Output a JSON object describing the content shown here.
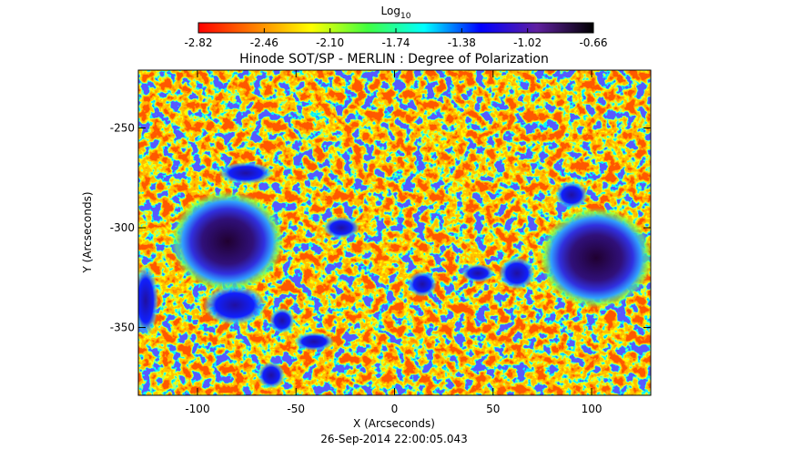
{
  "chart_data": {
    "type": "image",
    "title": "Hinode SOT/SP - MERLIN : Degree of Polarization",
    "colorbar": {
      "label": "Log",
      "label_sub": "10",
      "lim": [
        -2.82,
        -0.66
      ],
      "ticks": [
        -2.82,
        -2.46,
        {
          "value": -2.1,
          "label": "-2.10"
        },
        -1.74,
        -1.38,
        -1.02,
        -0.66
      ],
      "colormap": [
        "#ff0000",
        "#ff8000",
        "#ffff00",
        "#40ff40",
        "#00ffff",
        "#0000ff",
        "#6020a0",
        "#000000"
      ]
    },
    "xlabel": "X (Arcseconds)",
    "ylabel": "Y (Arcseconds)",
    "xlim": [
      -130,
      130
    ],
    "xticks": [
      -100,
      -50,
      0,
      50,
      100
    ],
    "ylim": [
      -384,
      -221
    ],
    "yticks": [
      -350,
      -300,
      -250
    ],
    "footer": "26-Sep-2014 22:00:05.043"
  }
}
